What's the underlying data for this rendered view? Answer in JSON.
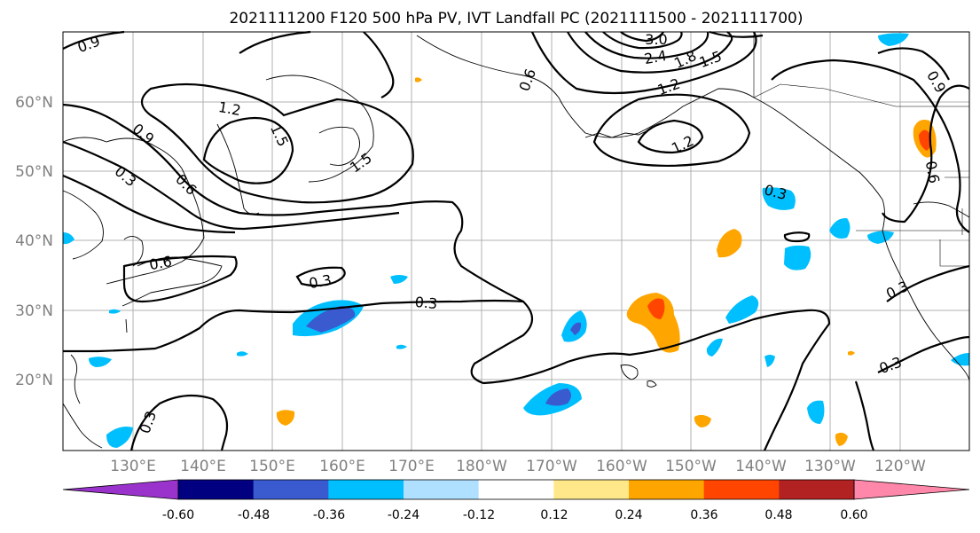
{
  "title": "2021111200 F120 500 hPa PV, IVT Landfall PC (2021111500 - 2021111700)",
  "lat_labels": [
    "60°N",
    "50°N",
    "40°N",
    "30°N",
    "20°N"
  ],
  "lon_labels": [
    "130°E",
    "140°E",
    "150°E",
    "160°E",
    "170°E",
    "180°W",
    "170°W",
    "160°W",
    "150°W",
    "140°W",
    "130°W",
    "120°W"
  ],
  "contour_labels": [
    "0.9",
    "1.2",
    "1.5",
    "0.9",
    "0.3",
    "0.6",
    "1.5",
    "0.6",
    "3.0",
    "2.4",
    "1.8",
    "1.5",
    "1.2",
    "1.2",
    "0.9",
    "0.3",
    "0.6",
    "0.3",
    "0.3",
    "0.3",
    "0.3",
    "0.3",
    "0.6"
  ],
  "colorbar": {
    "tick_labels": [
      "-0.60",
      "-0.48",
      "-0.36",
      "-0.24",
      "-0.12",
      "0.12",
      "0.24",
      "0.36",
      "0.48",
      "0.60"
    ],
    "colors": [
      "#9933cc",
      "#000080",
      "#3a5bd0",
      "#00bfff",
      "#b0e0ff",
      "#ffffff",
      "#ffe88a",
      "#ffa500",
      "#ff4500",
      "#b22222",
      "#ff88aa"
    ]
  },
  "shading_colors": {
    "neg_light": "#00bfff",
    "neg_mid": "#3a5bd0",
    "pos_light": "#ffa500",
    "pos_mid": "#ff4500",
    "pos_pale": "#ffe88a"
  }
}
